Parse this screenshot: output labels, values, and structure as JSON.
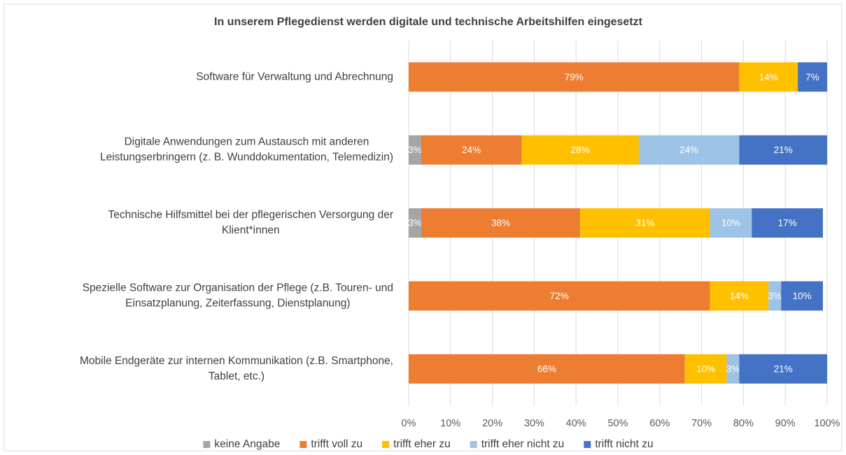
{
  "chart_data": {
    "type": "stacked-bar-horizontal",
    "title": "In unserem Pflegedienst werden digitale und technische Arbeitshilfen eingesetzt",
    "categories": [
      [
        "Software für Verwaltung und Abrechnung"
      ],
      [
        "Digitale Anwendungen zum Austausch mit anderen",
        "Leistungserbringern (z. B. Wunddokumentation, Telemedizin)"
      ],
      [
        "Technische Hilfsmittel bei der pflegerischen Versorgung der",
        "Klient*innen"
      ],
      [
        "Spezielle Software zur Organisation der Pflege (z.B. Touren- und",
        "Einsatzplanung, Zeiterfassung, Dienstplanung)"
      ],
      [
        "Mobile Endgeräte zur internen Kommunikation (z.B. Smartphone,",
        "Tablet, etc.)"
      ]
    ],
    "series": [
      {
        "name": "keine Angabe",
        "color": "#a5a5a5",
        "values": [
          null,
          3,
          3,
          null,
          null
        ],
        "value_labels": [
          null,
          "3%",
          "3%",
          null,
          null
        ]
      },
      {
        "name": "trifft voll zu",
        "color": "#ed7d31",
        "values": [
          79,
          24,
          38,
          72,
          66
        ],
        "value_labels": [
          "79%",
          "24%",
          "38%",
          "72%",
          "66%"
        ]
      },
      {
        "name": "trifft eher zu",
        "color": "#ffc000",
        "values": [
          14,
          28,
          31,
          14,
          10
        ],
        "value_labels": [
          "14%",
          "28%",
          "31%",
          "14%",
          "10%"
        ]
      },
      {
        "name": "trifft eher nicht zu",
        "color": "#9dc3e6",
        "values": [
          null,
          24,
          10,
          3,
          3
        ],
        "value_labels": [
          null,
          "24%",
          "10%",
          "3%",
          "3%"
        ]
      },
      {
        "name": "trifft nicht zu",
        "color": "#4472c4",
        "values": [
          7,
          21,
          17,
          10,
          21
        ],
        "value_labels": [
          "7%",
          "21%",
          "17%",
          "10%",
          "21%"
        ]
      }
    ],
    "xlim": [
      0,
      100
    ],
    "xticks": [
      {
        "value": 0,
        "label": "0%"
      },
      {
        "value": 10,
        "label": "10%"
      },
      {
        "value": 20,
        "label": "20%"
      },
      {
        "value": 30,
        "label": "30%"
      },
      {
        "value": 40,
        "label": "40%"
      },
      {
        "value": 50,
        "label": "50%"
      },
      {
        "value": 60,
        "label": "60%"
      },
      {
        "value": 70,
        "label": "70%"
      },
      {
        "value": 80,
        "label": "80%"
      },
      {
        "value": 90,
        "label": "90%"
      },
      {
        "value": 100,
        "label": "100%"
      }
    ],
    "grid": true,
    "legend": "bottom"
  }
}
